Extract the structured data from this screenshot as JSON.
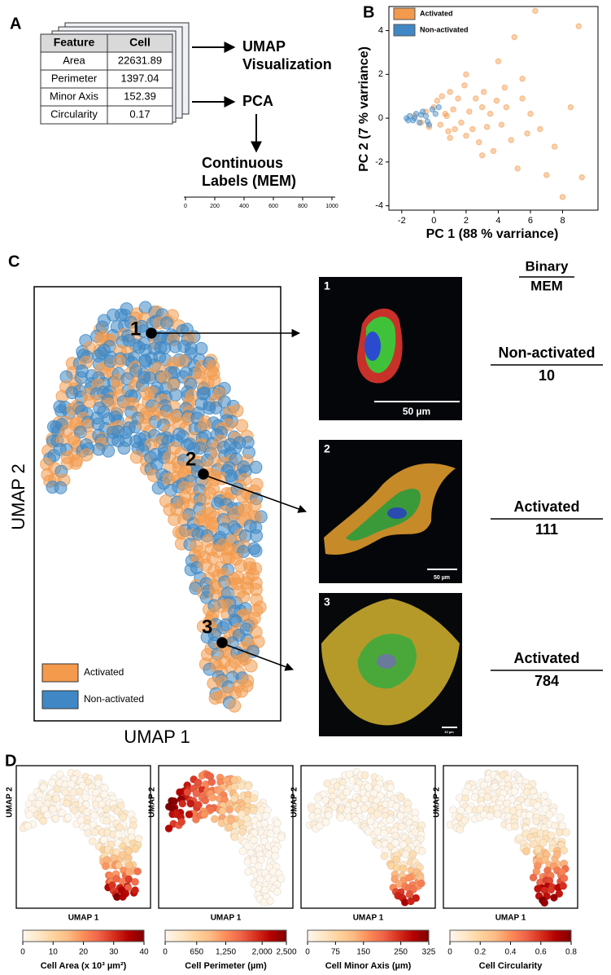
{
  "panel_labels": [
    "A",
    "B",
    "C",
    "D"
  ],
  "feature_table": {
    "header": [
      "Feature",
      "Cell"
    ],
    "rows": [
      [
        "Area",
        22631.89
      ],
      [
        "Perimeter",
        1397.04
      ],
      [
        "Minor Axis",
        152.39
      ],
      [
        "Circularity",
        0.17
      ]
    ]
  },
  "flow": {
    "umap_label": [
      "UMAP",
      "Visualization"
    ],
    "pca_label": "PCA",
    "mem_label": [
      "Continuous",
      "Labels (MEM)"
    ],
    "mem_axis": {
      "xlim": [
        0,
        1000
      ],
      "xticks": [
        0,
        200,
        400,
        600,
        800,
        1000
      ]
    }
  },
  "chart_data": {
    "type": "scatter",
    "xlabel": "PC 1 (88 % varriance)",
    "ylabel": "PC 2 (7 % varriance)",
    "xlim": [
      -2.8,
      10.2
    ],
    "ylim": [
      -4.2,
      5.1
    ],
    "xticks": [
      -2,
      0,
      2,
      4,
      6,
      8
    ],
    "yticks": [
      -4,
      -2,
      0,
      2,
      4
    ],
    "legend_position": "upper left",
    "series": [
      {
        "name": "Activated",
        "color": "#f39a4c",
        "x": [
          -1.2,
          -0.8,
          -0.5,
          -0.3,
          0,
          0.2,
          0.4,
          0.5,
          0.7,
          0.9,
          1,
          1.2,
          1.3,
          1.5,
          1.7,
          1.9,
          2,
          2.2,
          2.4,
          2.6,
          2.8,
          3,
          3.1,
          3.3,
          3.5,
          3.7,
          3.9,
          4,
          4.2,
          4.5,
          4.8,
          5,
          5.2,
          5.5,
          5.8,
          6,
          6.3,
          6.6,
          7,
          7.5,
          8,
          8.5,
          9,
          9.2,
          5.5,
          3,
          2,
          1,
          0.8,
          4.4
        ],
        "values": [
          0.1,
          -0.2,
          0.3,
          -0.4,
          0.5,
          0.8,
          -0.3,
          1,
          0.2,
          -0.6,
          1.2,
          0.4,
          -0.5,
          0.9,
          -0.2,
          1.5,
          -0.8,
          0.3,
          -0.5,
          0.9,
          -1.1,
          0.5,
          1.2,
          -0.4,
          0.2,
          -1.5,
          0.8,
          2.6,
          -0.3,
          0.5,
          -1,
          3.7,
          -2.3,
          1.8,
          -0.7,
          0.2,
          4.9,
          -0.5,
          -2.6,
          -1.3,
          -3.6,
          0.5,
          4.2,
          -2.7,
          0.9,
          -1.7,
          2,
          -0.9,
          0.1,
          1.4
        ]
      },
      {
        "name": "Non-activated",
        "color": "#3f88c5",
        "x": [
          -1.7,
          -1.5,
          -1.3,
          -1.1,
          -0.9,
          -0.7,
          -0.5,
          -0.3,
          -0.1,
          0.1,
          -1.6,
          -1.2,
          -0.8,
          -0.4,
          0.3
        ],
        "values": [
          0,
          0.1,
          -0.1,
          0.2,
          -0.2,
          0.3,
          0.1,
          -0.3,
          0.4,
          0.2,
          -0.1,
          0,
          0.15,
          -0.15,
          0.5
        ]
      }
    ]
  },
  "umap": {
    "xlabel": "UMAP 1",
    "ylabel": "UMAP 2",
    "legend": [
      "Activated",
      "Non-activated"
    ],
    "points": [
      "1",
      "2",
      "3"
    ]
  },
  "mem_header": [
    "Binary",
    "MEM"
  ],
  "cells": [
    {
      "number": "1",
      "scale_bar": "50 µm",
      "binary": "Non-activated",
      "mem": 10
    },
    {
      "number": "2",
      "scale_bar": "50 µm",
      "binary": "Activated",
      "mem": 111
    },
    {
      "number": "3",
      "scale_bar": "10 µm",
      "binary": "Activated",
      "mem": 784
    }
  ],
  "heatmaps": [
    {
      "title": "Cell Area (x 10³ µm²)",
      "xlabel": "UMAP 1",
      "ylabel": "UMAP 2",
      "lim": [
        0,
        40
      ],
      "ticks": [
        0,
        10,
        20,
        30,
        40
      ]
    },
    {
      "title": "Cell Perimeter (µm)",
      "xlabel": "UMAP 1",
      "ylabel": "UMAP 2",
      "lim": [
        0,
        2500
      ],
      "ticks": [
        0,
        650,
        {
          "value": 1250,
          "label": "1,250"
        },
        {
          "value": 2000,
          "label": "2,000"
        },
        {
          "value": 2500,
          "label": "2,500"
        }
      ]
    },
    {
      "title": "Cell Minor Axis (µm)",
      "xlabel": "UMAP 1",
      "ylabel": "UMAP 2",
      "lim": [
        0,
        325
      ],
      "ticks": [
        0,
        75,
        150,
        250,
        325
      ]
    },
    {
      "title": "Cell Circularity",
      "xlabel": "UMAP 1",
      "ylabel": "UMAP 2",
      "lim": [
        0,
        0.8
      ],
      "ticks": [
        0,
        0.2,
        0.4,
        0.6,
        0.8
      ]
    }
  ]
}
